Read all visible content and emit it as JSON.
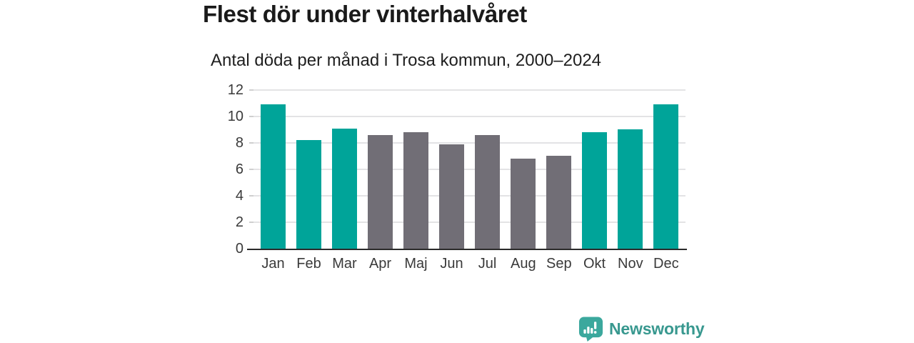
{
  "header": {
    "title": "Flest dör under vinterhalvåret",
    "subtitle": "Antal döda per månad i Trosa kommun, 2000–2024"
  },
  "chart_data": {
    "type": "bar",
    "title": "Flest dör under vinterhalvåret",
    "subtitle": "Antal döda per månad i Trosa kommun, 2000–2024",
    "categories": [
      "Jan",
      "Feb",
      "Mar",
      "Apr",
      "Maj",
      "Jun",
      "Jul",
      "Aug",
      "Sep",
      "Okt",
      "Nov",
      "Dec"
    ],
    "values": [
      10.9,
      8.2,
      9.1,
      8.6,
      8.8,
      7.9,
      8.6,
      6.8,
      7.0,
      8.8,
      9.0,
      10.9
    ],
    "series_groups": [
      "winter",
      "winter",
      "winter",
      "summer",
      "summer",
      "summer",
      "summer",
      "summer",
      "summer",
      "winter",
      "winter",
      "winter"
    ],
    "group_colors": {
      "winter": "#00a499",
      "summer": "#716e76"
    },
    "xlabel": "",
    "ylabel": "",
    "ylim": [
      0,
      12
    ],
    "yticks": [
      0,
      2,
      4,
      6,
      8,
      10,
      12
    ],
    "grid": true,
    "legend": false
  },
  "colors": {
    "bar_winter": "#00a499",
    "bar_summer": "#716e76",
    "axis_line": "#2b2b2b",
    "gridline": "#e3e3e5",
    "tick_mark": "#cfcfcf",
    "tick_text": "#3a3a3a",
    "title_text": "#1a1a1a"
  },
  "branding": {
    "logo_text": "Newsworthy",
    "logo_icon": "bar-chart-speech-bubble-icon",
    "logo_icon_color": "#3ba89d",
    "logo_text_color": "#38988f"
  }
}
